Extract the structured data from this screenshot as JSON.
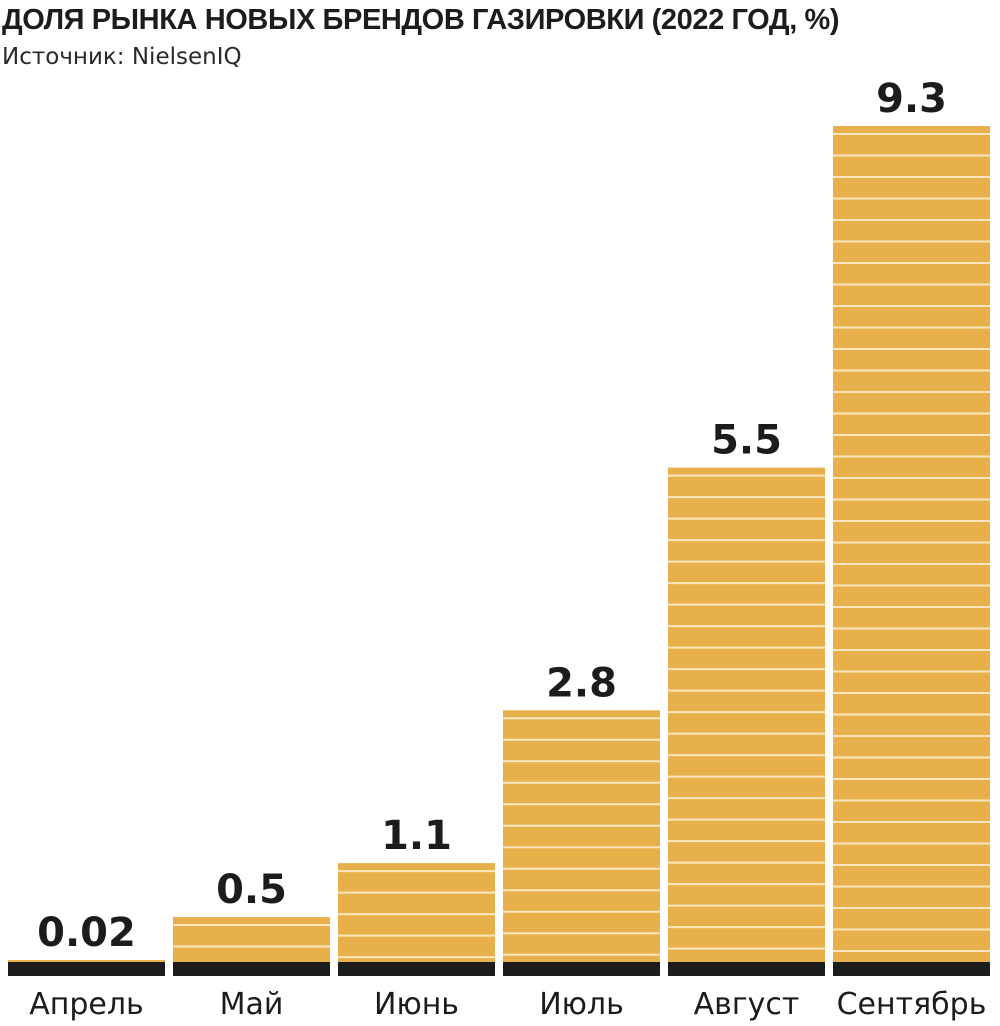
{
  "chart_data": {
    "type": "bar",
    "title": "ДОЛЯ РЫНКА НОВЫХ БРЕНДОВ ГАЗИРОВКИ (2022 ГОД, %)",
    "subtitle": "Источник: NielsenIQ",
    "categories": [
      "Апрель",
      "Май",
      "Июнь",
      "Июль",
      "Август",
      "Сентябрь"
    ],
    "values": [
      0.02,
      0.5,
      1.1,
      2.8,
      5.5,
      9.3
    ],
    "value_labels": [
      "0.02",
      "0.5",
      "1.1",
      "2.8",
      "5.5",
      "9.3"
    ],
    "xlabel": "",
    "ylabel": "",
    "ylim": [
      0,
      9.3
    ],
    "grid": false,
    "colors": {
      "bar": "#e8b04b",
      "bar_stripe": "#fbe6bd",
      "base": "#1c1c1c",
      "text": "#1c1c1c"
    }
  }
}
